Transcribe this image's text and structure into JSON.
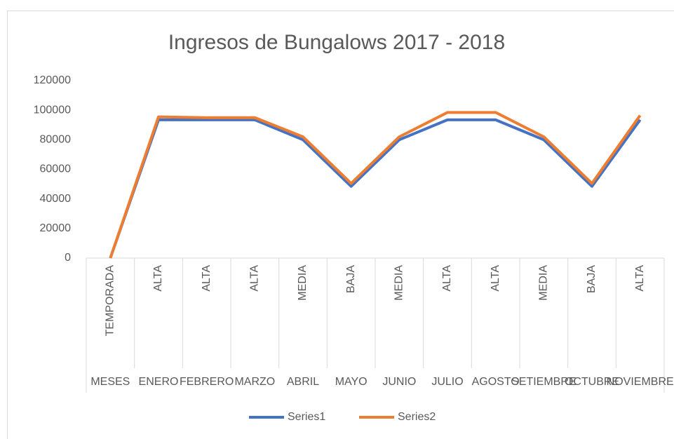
{
  "chart_data": {
    "type": "line",
    "title": "Ingresos de Bungalows 2017 - 2018",
    "categories": [
      "MESES",
      "ENERO",
      "FEBRERO",
      "MARZO",
      "ABRIL",
      "MAYO",
      "JUNIO",
      "JULIO",
      "AGOSTO",
      "SETIEMBRE",
      "OCTUBRE",
      "NOVIEMBRE"
    ],
    "subcategories": [
      "TEMPORADA",
      "ALTA",
      "ALTA",
      "ALTA",
      "MEDIA",
      "BAJA",
      "MEDIA",
      "ALTA",
      "ALTA",
      "MEDIA",
      "BAJA",
      "ALTA"
    ],
    "series": [
      {
        "name": "Series1",
        "color": "#4472c4",
        "values": [
          0,
          93500,
          93500,
          93500,
          80000,
          48500,
          80000,
          93500,
          93500,
          80000,
          48500,
          93500
        ]
      },
      {
        "name": "Series2",
        "color": "#ed7d31",
        "values": [
          0,
          95500,
          95000,
          95000,
          82000,
          50500,
          82000,
          98500,
          98500,
          82000,
          50500,
          96500
        ]
      }
    ],
    "ylim": [
      0,
      120000
    ],
    "yticks": [
      0,
      20000,
      40000,
      60000,
      80000,
      100000,
      120000
    ],
    "grid": false,
    "legend": "bottom"
  }
}
